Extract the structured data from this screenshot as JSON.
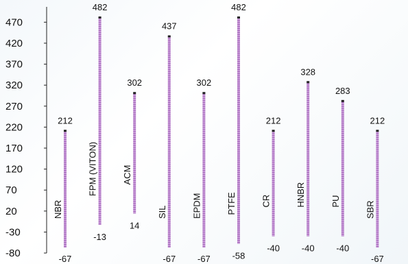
{
  "chart_data": {
    "type": "bar",
    "subtype": "floating-range",
    "title": "",
    "xlabel": "",
    "ylabel": "",
    "ylim": [
      -80,
      500
    ],
    "yticks": [
      -80,
      -30,
      20,
      70,
      120,
      170,
      220,
      270,
      320,
      370,
      420,
      470
    ],
    "grid": false,
    "legend": "none",
    "bar_color": "#c79ad6",
    "bar_stripe_color": "#a869be",
    "cap_color": "#222222",
    "categories": [
      "NBR",
      "FPM (VITON)",
      "ACM",
      "SIL",
      "EPDM",
      "PTFE",
      "CR",
      "HNBR",
      "PU",
      "SBR"
    ],
    "lows": [
      -67,
      -13,
      14,
      -67,
      -67,
      -58,
      -40,
      -40,
      -40,
      -67
    ],
    "highs": [
      212,
      482,
      302,
      437,
      302,
      482,
      212,
      328,
      283,
      212
    ]
  }
}
